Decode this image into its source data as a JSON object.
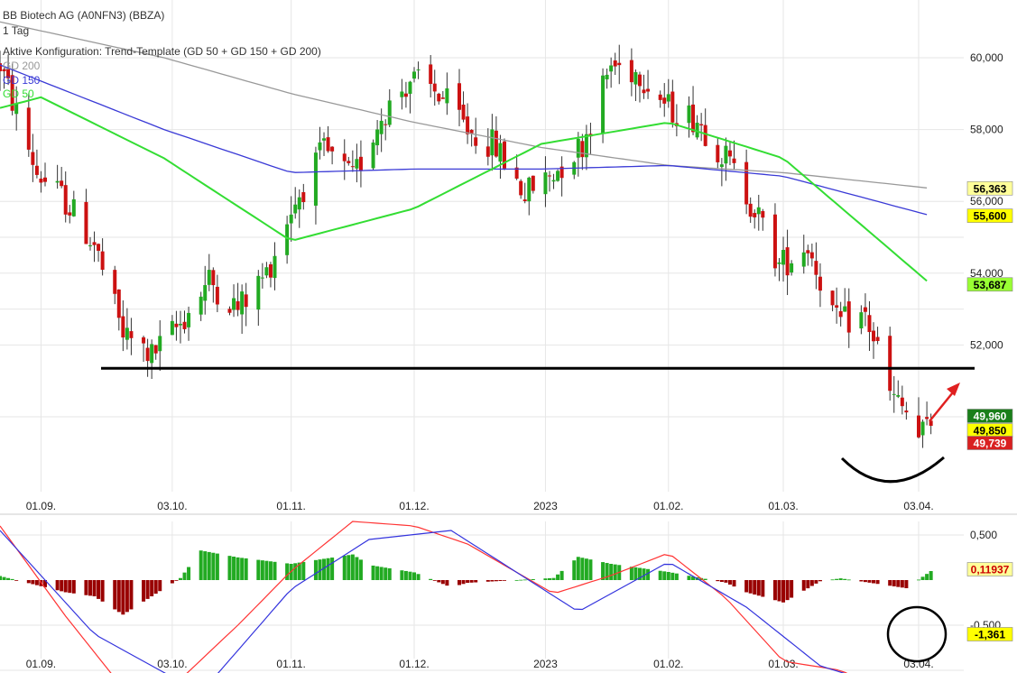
{
  "header": {
    "title": "BB Biotech AG (A0NFN3) (BBZA)",
    "period": "1 Tag",
    "config": "Aktive Konfiguration: Trend-Template (GD 50 + GD 150 + GD 200)",
    "legend": [
      {
        "name": "GD 200",
        "color": "#999999"
      },
      {
        "name": "GD 150",
        "color": "#3a3ad6"
      },
      {
        "name": "GD 50",
        "color": "#33dd33"
      }
    ]
  },
  "chart_data": [
    {
      "type": "candlestick",
      "title": "BB Biotech AG (A0NFN3) (BBZA)",
      "x_ticks": [
        "01.09.",
        "03.10.",
        "01.11.",
        "01.12.",
        "2023",
        "01.02.",
        "01.03.",
        "03.04."
      ],
      "y_ticks": [
        "60,000",
        "58,000",
        "56,000",
        "54,000",
        "52,000"
      ],
      "ylim": [
        49.0,
        61.2
      ],
      "price_anchors": [
        [
          "2022-08-22",
          59.8
        ],
        [
          "2022-08-31",
          56.8
        ],
        [
          "2022-09-07",
          56.0
        ],
        [
          "2022-09-14",
          54.8
        ],
        [
          "2022-09-21",
          52.3
        ],
        [
          "2022-09-28",
          51.7
        ],
        [
          "2022-10-05",
          52.6
        ],
        [
          "2022-10-12",
          53.8
        ],
        [
          "2022-10-19",
          53.0
        ],
        [
          "2022-10-26",
          54.0
        ],
        [
          "2022-11-01",
          55.8
        ],
        [
          "2022-11-09",
          57.4
        ],
        [
          "2022-11-16",
          56.6
        ],
        [
          "2022-11-23",
          58.4
        ],
        [
          "2022-11-30",
          59.4
        ],
        [
          "2022-12-07",
          59.0
        ],
        [
          "2022-12-14",
          58.0
        ],
        [
          "2022-12-21",
          57.5
        ],
        [
          "2022-12-28",
          56.2
        ],
        [
          "2023-01-04",
          56.8
        ],
        [
          "2023-01-11",
          57.6
        ],
        [
          "2023-01-18",
          59.8
        ],
        [
          "2023-01-25",
          59.6
        ],
        [
          "2023-02-01",
          58.6
        ],
        [
          "2023-02-08",
          58.3
        ],
        [
          "2023-02-15",
          57.2
        ],
        [
          "2023-02-22",
          55.8
        ],
        [
          "2023-02-28",
          54.2
        ],
        [
          "2023-03-07",
          54.8
        ],
        [
          "2023-03-14",
          52.6
        ],
        [
          "2023-03-21",
          52.8
        ],
        [
          "2023-03-24",
          51.9
        ],
        [
          "2023-03-27",
          50.6
        ],
        [
          "2023-03-31",
          50.1
        ],
        [
          "2023-04-03",
          49.4
        ],
        [
          "2023-04-06",
          49.85
        ]
      ],
      "moving_averages": [
        {
          "name": "GD 200",
          "color": "#999999",
          "points": [
            [
              "2022-08-22",
              61.0
            ],
            [
              "2022-10-01",
              60.0
            ],
            [
              "2022-11-01",
              59.0
            ],
            [
              "2022-12-01",
              58.2
            ],
            [
              "2023-01-01",
              57.5
            ],
            [
              "2023-02-01",
              57.0
            ],
            [
              "2023-03-01",
              56.8
            ],
            [
              "2023-04-06",
              56.363
            ]
          ]
        },
        {
          "name": "GD 150",
          "color": "#3a3ad6",
          "points": [
            [
              "2022-08-22",
              59.8
            ],
            [
              "2022-10-01",
              58.0
            ],
            [
              "2022-11-01",
              56.8
            ],
            [
              "2022-12-01",
              56.9
            ],
            [
              "2023-01-01",
              56.9
            ],
            [
              "2023-02-01",
              57.0
            ],
            [
              "2023-03-01",
              56.7
            ],
            [
              "2023-04-06",
              55.6
            ]
          ]
        },
        {
          "name": "GD 50",
          "color": "#33dd33",
          "points": [
            [
              "2022-08-22",
              58.6
            ],
            [
              "2022-09-01",
              58.9
            ],
            [
              "2022-10-01",
              57.2
            ],
            [
              "2022-11-01",
              54.9
            ],
            [
              "2022-12-01",
              55.8
            ],
            [
              "2023-01-01",
              57.6
            ],
            [
              "2023-02-01",
              58.2
            ],
            [
              "2023-03-01",
              57.2
            ],
            [
              "2023-04-06",
              53.687
            ]
          ]
        }
      ],
      "price_labels": [
        {
          "value": "56,363",
          "bg": "#ffff99",
          "fg": "#000000"
        },
        {
          "value": "55,600",
          "bg": "#ffff00",
          "fg": "#000000"
        },
        {
          "value": "53,687",
          "bg": "#99ff33",
          "fg": "#000000"
        },
        {
          "value": "49,960",
          "bg": "#1a7f1a",
          "fg": "#ffffff"
        },
        {
          "value": "49,850",
          "bg": "#ffff00",
          "fg": "#000000"
        },
        {
          "value": "49,739",
          "bg": "#d92020",
          "fg": "#ffffff"
        }
      ],
      "support_line": 51.35,
      "up_color": "#22aa22",
      "down_color": "#cc1111"
    },
    {
      "type": "macd",
      "y_ticks": [
        "0,500",
        "-0,500"
      ],
      "ylim": [
        -1.5,
        0.85
      ],
      "macd_anchors": [
        [
          "2022-08-22",
          0.6
        ],
        [
          "2022-09-07",
          -0.4
        ],
        [
          "2022-09-21",
          -1.2
        ],
        [
          "2022-10-05",
          -1.1
        ],
        [
          "2022-10-19",
          -0.5
        ],
        [
          "2022-11-01",
          0.1
        ],
        [
          "2022-11-16",
          0.65
        ],
        [
          "2022-12-01",
          0.6
        ],
        [
          "2022-12-14",
          0.4
        ],
        [
          "2023-01-04",
          -0.15
        ],
        [
          "2023-01-18",
          0.05
        ],
        [
          "2023-02-01",
          0.3
        ],
        [
          "2023-02-15",
          -0.2
        ],
        [
          "2023-03-01",
          -0.9
        ],
        [
          "2023-03-15",
          -1.0
        ],
        [
          "2023-03-31",
          -1.35
        ],
        [
          "2023-04-06",
          -1.25
        ]
      ],
      "signal_anchors": [
        [
          "2022-08-22",
          0.55
        ],
        [
          "2022-09-14",
          -0.6
        ],
        [
          "2022-10-10",
          -1.25
        ],
        [
          "2022-11-01",
          -0.1
        ],
        [
          "2022-11-20",
          0.45
        ],
        [
          "2022-12-10",
          0.55
        ],
        [
          "2023-01-10",
          -0.35
        ],
        [
          "2023-02-01",
          0.2
        ],
        [
          "2023-02-20",
          -0.3
        ],
        [
          "2023-03-10",
          -0.95
        ],
        [
          "2023-03-31",
          -1.25
        ],
        [
          "2023-04-06",
          -1.361
        ]
      ],
      "macd_color": "#ff3333",
      "signal_color": "#3333dd",
      "hist_pos_color": "#22aa22",
      "hist_neg_color": "#990000",
      "labels": [
        {
          "value": "0,11937",
          "bg": "#ffff99",
          "fg": "#cc0000"
        },
        {
          "value": "-1,361",
          "bg": "#ffff00",
          "fg": "#000000"
        }
      ]
    }
  ]
}
